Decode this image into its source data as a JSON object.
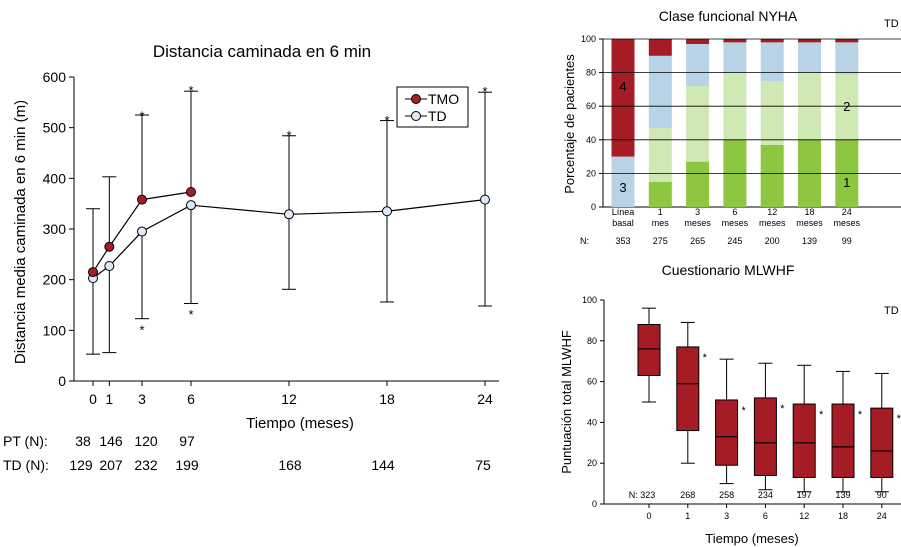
{
  "colors": {
    "tmo": "#a61c24",
    "td_fill": "#dfe9f5",
    "nyha_1": "#8dc63f",
    "nyha_2": "#cfe8b4",
    "nyha_3": "#b9d3e6",
    "nyha_4": "#a61c24",
    "box": "#a61c24"
  },
  "chart_data": [
    {
      "type": "line",
      "title": "Distancia caminada en 6 min",
      "xlabel": "Tiempo (meses)",
      "ylabel": "Distancia media caminada en 6 min (m)",
      "ylim": [
        0,
        600
      ],
      "yticks": [
        "0",
        "100",
        "200",
        "300",
        "400",
        "500",
        "600"
      ],
      "x": [
        0,
        1,
        3,
        6,
        12,
        18,
        24
      ],
      "xtick_labels": [
        "0",
        "1",
        "3",
        "6",
        "12",
        "18",
        "24"
      ],
      "legend": {
        "placement": "top-right",
        "entries": [
          "TMO",
          "TD"
        ]
      },
      "series": [
        {
          "name": "TMO",
          "x": [
            0,
            1,
            3,
            6
          ],
          "values": [
            215,
            265,
            358,
            373
          ],
          "err_high": [
            340,
            403,
            525,
            572
          ],
          "err_low": [
            null,
            null,
            null,
            null
          ]
        },
        {
          "name": "TD",
          "x": [
            0,
            1,
            3,
            6,
            12,
            18,
            24
          ],
          "values": [
            203,
            227,
            295,
            347,
            329,
            335,
            358
          ],
          "err_high": [
            null,
            null,
            null,
            null,
            484,
            514,
            570
          ],
          "err_low": [
            53,
            56,
            123,
            153,
            181,
            156,
            148
          ]
        }
      ],
      "annotations": [
        {
          "text": "*",
          "x": 3,
          "y": 530
        },
        {
          "text": "*",
          "x": 3,
          "y": 108
        },
        {
          "text": "*",
          "x": 6,
          "y": 580
        },
        {
          "text": "*",
          "x": 6,
          "y": 138
        },
        {
          "text": "*",
          "x": 12,
          "y": 491
        },
        {
          "text": "*",
          "x": 18,
          "y": 521
        },
        {
          "text": "*",
          "x": 24,
          "y": 578
        }
      ],
      "n_table": {
        "rows": [
          {
            "label": "PT (N):",
            "values": [
              "38",
              "146",
              "120",
              "97",
              "",
              "",
              ""
            ]
          },
          {
            "label": "TD (N):",
            "values": [
              "129",
              "207",
              "232",
              "199",
              "168",
              "144",
              "75"
            ]
          }
        ]
      }
    },
    {
      "type": "bar",
      "stacked": true,
      "title": "Clase funcional NYHA",
      "corner_label": "TD",
      "ylabel": "Porcentaje de pacientes",
      "ylim": [
        0,
        100
      ],
      "yticks": [
        "0",
        "20",
        "40",
        "60",
        "80",
        "100"
      ],
      "categories": [
        [
          "Línea",
          "basal"
        ],
        [
          "1",
          "mes"
        ],
        [
          "3",
          "meses"
        ],
        [
          "6",
          "meses"
        ],
        [
          "12",
          "meses"
        ],
        [
          "18",
          "meses"
        ],
        [
          "24",
          "meses"
        ]
      ],
      "n_label": "N:",
      "n_values": [
        "353",
        "275",
        "265",
        "245",
        "200",
        "139",
        "99"
      ],
      "series": [
        {
          "class": "1",
          "values": [
            0,
            15,
            27,
            40,
            37,
            40,
            40
          ]
        },
        {
          "class": "2",
          "values": [
            0,
            32,
            45,
            40,
            38,
            40,
            39
          ]
        },
        {
          "class": "3",
          "values": [
            30,
            43,
            25,
            18,
            23,
            18,
            19
          ]
        },
        {
          "class": "4",
          "values": [
            70,
            10,
            3,
            2,
            2,
            2,
            2
          ]
        }
      ],
      "class_labels": [
        {
          "text": "3",
          "category": 0,
          "y": 12
        },
        {
          "text": "4",
          "category": 0,
          "y": 72
        },
        {
          "text": "2",
          "category": 6,
          "y": 60
        },
        {
          "text": "1",
          "category": 6,
          "y": 15
        }
      ]
    },
    {
      "type": "box",
      "title": "Cuestionario MLWHF",
      "corner_label": "TD",
      "xlabel": "Tiempo (meses)",
      "ylabel": "Puntuación total MLWHF",
      "ylim": [
        0,
        100
      ],
      "yticks": [
        "0",
        "20",
        "40",
        "60",
        "80",
        "100"
      ],
      "categories": [
        "0",
        "1",
        "3",
        "6",
        "12",
        "18",
        "24"
      ],
      "n_prefix": "N:",
      "n_values": [
        "323",
        "268",
        "258",
        "234",
        "197",
        "139",
        "90"
      ],
      "boxes": [
        {
          "min": 50,
          "q1": 63,
          "median": 76,
          "q3": 88,
          "max": 96,
          "star": false
        },
        {
          "min": 20,
          "q1": 36,
          "median": 59,
          "q3": 77,
          "max": 89,
          "star": true
        },
        {
          "min": 10,
          "q1": 19,
          "median": 33,
          "q3": 51,
          "max": 71,
          "star": true
        },
        {
          "min": 7,
          "q1": 14,
          "median": 30,
          "q3": 52,
          "max": 69,
          "star": true
        },
        {
          "min": 6,
          "q1": 13,
          "median": 30,
          "q3": 49,
          "max": 68,
          "star": true
        },
        {
          "min": 6,
          "q1": 13,
          "median": 28,
          "q3": 49,
          "max": 65,
          "star": true
        },
        {
          "min": 6,
          "q1": 13,
          "median": 26,
          "q3": 47,
          "max": 64,
          "star": true
        }
      ]
    }
  ]
}
